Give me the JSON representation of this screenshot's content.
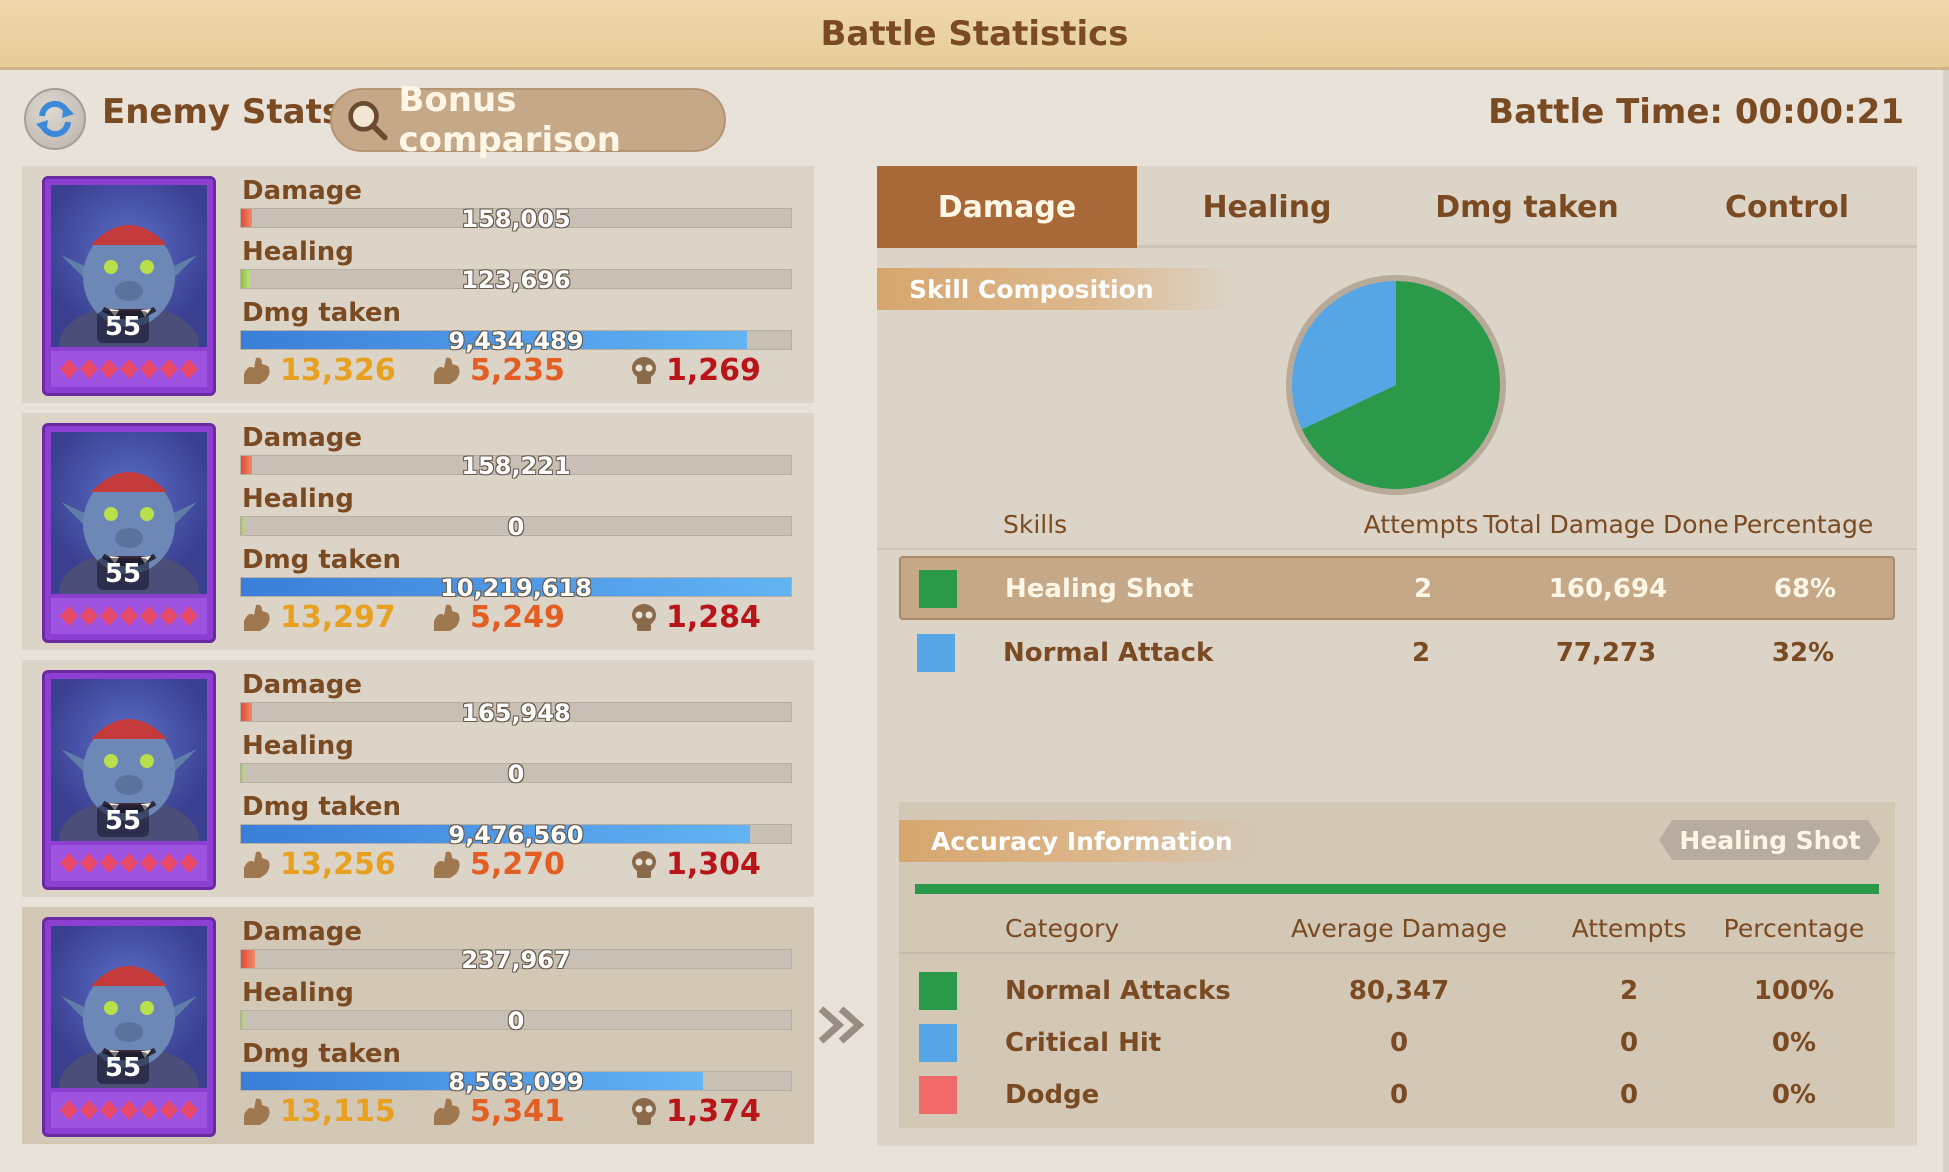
{
  "title": "Battle Statistics",
  "header": {
    "enemy_stats_label": "Enemy Stats",
    "bonus_comparison_label": "Bonus comparison",
    "battle_time": "Battle Time: 00:00:21"
  },
  "heroes": [
    {
      "level": "55",
      "damage_label": "Damage",
      "damage": "158,005",
      "damage_fraction": 0.02,
      "healing_label": "Healing",
      "healing": "123,696",
      "healing_fraction": 0.015,
      "dmg_taken_label": "Dmg taken",
      "dmg_taken": "9,434,489",
      "dmg_taken_fraction": 0.92,
      "stat1": "13,326",
      "stat2": "5,235",
      "stat3": "1,269"
    },
    {
      "level": "55",
      "damage_label": "Damage",
      "damage": "158,221",
      "damage_fraction": 0.02,
      "healing_label": "Healing",
      "healing": "0",
      "healing_fraction": 0.004,
      "dmg_taken_label": "Dmg taken",
      "dmg_taken": "10,219,618",
      "dmg_taken_fraction": 1.0,
      "stat1": "13,297",
      "stat2": "5,249",
      "stat3": "1,284"
    },
    {
      "level": "55",
      "damage_label": "Damage",
      "damage": "165,948",
      "damage_fraction": 0.02,
      "healing_label": "Healing",
      "healing": "0",
      "healing_fraction": 0.004,
      "dmg_taken_label": "Dmg taken",
      "dmg_taken": "9,476,560",
      "dmg_taken_fraction": 0.925,
      "stat1": "13,256",
      "stat2": "5,270",
      "stat3": "1,304"
    },
    {
      "level": "55",
      "damage_label": "Damage",
      "damage": "237,967",
      "damage_fraction": 0.025,
      "healing_label": "Healing",
      "healing": "0",
      "healing_fraction": 0.004,
      "dmg_taken_label": "Dmg taken",
      "dmg_taken": "8,563,099",
      "dmg_taken_fraction": 0.84,
      "stat1": "13,115",
      "stat2": "5,341",
      "stat3": "1,374"
    }
  ],
  "tabs": [
    "Damage",
    "Healing",
    "Dmg taken",
    "Control"
  ],
  "skill_composition": {
    "title": "Skill Composition",
    "headers": {
      "skills": "Skills",
      "attempts": "Attempts",
      "total": "Total Damage Done",
      "percentage": "Percentage"
    },
    "rows": [
      {
        "name": "Healing Shot",
        "attempts": "2",
        "total": "160,694",
        "percentage": "68%",
        "color": "#2a9a4a",
        "fraction": 0.68
      },
      {
        "name": "Normal Attack",
        "attempts": "2",
        "total": "77,273",
        "percentage": "32%",
        "color": "#56a6e6",
        "fraction": 0.32
      }
    ]
  },
  "accuracy": {
    "title": "Accuracy Information",
    "skill_tag": "Healing Shot",
    "headers": {
      "category": "Category",
      "average": "Average Damage",
      "attempts": "Attempts",
      "percentage": "Percentage"
    },
    "rows": [
      {
        "name": "Normal Attacks",
        "average": "80,347",
        "attempts": "2",
        "percentage": "100%",
        "color": "#2a9a4a"
      },
      {
        "name": "Critical Hit",
        "average": "0",
        "attempts": "0",
        "percentage": "0%",
        "color": "#56a6e6"
      },
      {
        "name": "Dodge",
        "average": "0",
        "attempts": "0",
        "percentage": "0%",
        "color": "#f06a6a"
      }
    ]
  },
  "colors": {
    "accent": "#a86838",
    "title_bar": "#e7cc98",
    "text": "#7a4a22"
  }
}
